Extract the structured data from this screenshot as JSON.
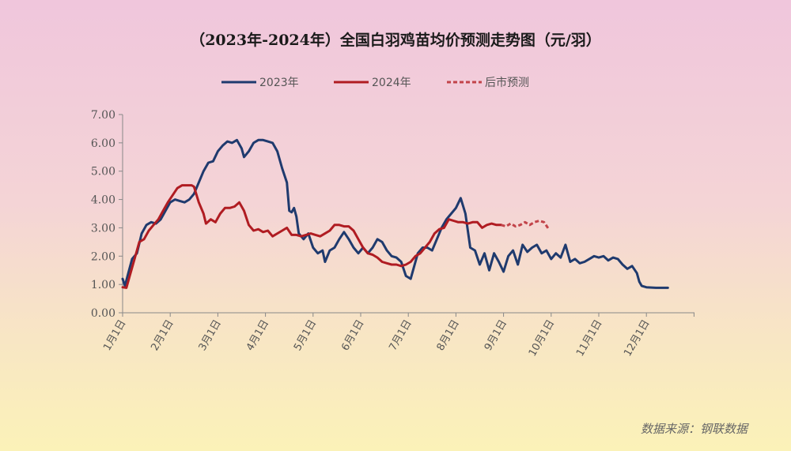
{
  "chart_data": {
    "type": "line",
    "title": "（2023年-2024年）全国白羽鸡苗均价预测走势图（元/羽）",
    "source": "数据来源：钢联数据",
    "ylim": [
      0,
      7
    ],
    "yticks": [
      "0.00",
      "1.00",
      "2.00",
      "3.00",
      "4.00",
      "5.00",
      "6.00",
      "7.00"
    ],
    "xticks": [
      "1月1日",
      "2月1日",
      "3月1日",
      "4月1日",
      "5月1日",
      "6月1日",
      "7月1日",
      "8月1日",
      "9月1日",
      "10月1日",
      "11月1日",
      "12月1日"
    ],
    "legend_position": "top-center",
    "series": [
      {
        "name": "2023年",
        "color": "#1f3a6e",
        "style": "solid",
        "points": [
          [
            0,
            1.2
          ],
          [
            0.05,
            0.95
          ],
          [
            0.12,
            1.4
          ],
          [
            0.2,
            1.9
          ],
          [
            0.3,
            2.1
          ],
          [
            0.4,
            2.8
          ],
          [
            0.5,
            3.1
          ],
          [
            0.6,
            3.2
          ],
          [
            0.7,
            3.15
          ],
          [
            0.8,
            3.3
          ],
          [
            0.9,
            3.6
          ],
          [
            1.0,
            3.9
          ],
          [
            1.1,
            4.0
          ],
          [
            1.2,
            3.95
          ],
          [
            1.3,
            3.9
          ],
          [
            1.4,
            4.0
          ],
          [
            1.5,
            4.2
          ],
          [
            1.6,
            4.6
          ],
          [
            1.7,
            5.0
          ],
          [
            1.8,
            5.3
          ],
          [
            1.9,
            5.35
          ],
          [
            2.0,
            5.7
          ],
          [
            2.1,
            5.9
          ],
          [
            2.2,
            6.05
          ],
          [
            2.3,
            6.0
          ],
          [
            2.4,
            6.1
          ],
          [
            2.5,
            5.8
          ],
          [
            2.55,
            5.5
          ],
          [
            2.65,
            5.7
          ],
          [
            2.75,
            6.0
          ],
          [
            2.85,
            6.1
          ],
          [
            2.95,
            6.1
          ],
          [
            3.05,
            6.05
          ],
          [
            3.15,
            6.0
          ],
          [
            3.25,
            5.7
          ],
          [
            3.35,
            5.1
          ],
          [
            3.45,
            4.6
          ],
          [
            3.5,
            3.6
          ],
          [
            3.55,
            3.55
          ],
          [
            3.6,
            3.7
          ],
          [
            3.65,
            3.4
          ],
          [
            3.7,
            2.8
          ],
          [
            3.8,
            2.6
          ],
          [
            3.9,
            2.8
          ],
          [
            4.0,
            2.3
          ],
          [
            4.1,
            2.1
          ],
          [
            4.2,
            2.2
          ],
          [
            4.25,
            1.8
          ],
          [
            4.35,
            2.2
          ],
          [
            4.45,
            2.3
          ],
          [
            4.55,
            2.6
          ],
          [
            4.65,
            2.85
          ],
          [
            4.75,
            2.6
          ],
          [
            4.85,
            2.3
          ],
          [
            4.95,
            2.1
          ],
          [
            5.05,
            2.3
          ],
          [
            5.15,
            2.1
          ],
          [
            5.25,
            2.3
          ],
          [
            5.35,
            2.6
          ],
          [
            5.45,
            2.5
          ],
          [
            5.55,
            2.2
          ],
          [
            5.65,
            2.0
          ],
          [
            5.75,
            1.95
          ],
          [
            5.85,
            1.8
          ],
          [
            5.95,
            1.3
          ],
          [
            6.05,
            1.2
          ],
          [
            6.1,
            1.5
          ],
          [
            6.2,
            2.1
          ],
          [
            6.3,
            2.3
          ],
          [
            6.4,
            2.3
          ],
          [
            6.5,
            2.2
          ],
          [
            6.6,
            2.6
          ],
          [
            6.7,
            3.0
          ],
          [
            6.8,
            3.3
          ],
          [
            6.9,
            3.5
          ],
          [
            7.0,
            3.7
          ],
          [
            7.1,
            4.05
          ],
          [
            7.2,
            3.5
          ],
          [
            7.3,
            2.3
          ],
          [
            7.4,
            2.2
          ],
          [
            7.5,
            1.7
          ],
          [
            7.6,
            2.1
          ],
          [
            7.7,
            1.5
          ],
          [
            7.8,
            2.1
          ],
          [
            7.9,
            1.8
          ],
          [
            8.0,
            1.45
          ],
          [
            8.1,
            2.0
          ],
          [
            8.2,
            2.2
          ],
          [
            8.3,
            1.7
          ],
          [
            8.4,
            2.4
          ],
          [
            8.5,
            2.15
          ],
          [
            8.6,
            2.3
          ],
          [
            8.7,
            2.4
          ],
          [
            8.8,
            2.1
          ],
          [
            8.9,
            2.2
          ],
          [
            9.0,
            1.9
          ],
          [
            9.1,
            2.1
          ],
          [
            9.2,
            1.95
          ],
          [
            9.3,
            2.4
          ],
          [
            9.4,
            1.8
          ],
          [
            9.5,
            1.9
          ],
          [
            9.6,
            1.75
          ],
          [
            9.7,
            1.8
          ],
          [
            9.8,
            1.9
          ],
          [
            9.9,
            2.0
          ],
          [
            10.0,
            1.95
          ],
          [
            10.1,
            2.0
          ],
          [
            10.2,
            1.85
          ],
          [
            10.3,
            1.95
          ],
          [
            10.4,
            1.9
          ],
          [
            10.5,
            1.7
          ],
          [
            10.6,
            1.55
          ],
          [
            10.7,
            1.65
          ],
          [
            10.8,
            1.4
          ],
          [
            10.85,
            1.1
          ],
          [
            10.9,
            0.95
          ],
          [
            11.0,
            0.9
          ],
          [
            11.2,
            0.88
          ],
          [
            11.45,
            0.88
          ]
        ]
      },
      {
        "name": "2024年",
        "color": "#b01c22",
        "style": "solid",
        "points": [
          [
            0,
            0.9
          ],
          [
            0.08,
            0.88
          ],
          [
            0.15,
            1.3
          ],
          [
            0.25,
            1.9
          ],
          [
            0.35,
            2.5
          ],
          [
            0.45,
            2.6
          ],
          [
            0.55,
            2.9
          ],
          [
            0.65,
            3.1
          ],
          [
            0.75,
            3.3
          ],
          [
            0.85,
            3.6
          ],
          [
            0.95,
            3.9
          ],
          [
            1.05,
            4.15
          ],
          [
            1.15,
            4.4
          ],
          [
            1.25,
            4.5
          ],
          [
            1.35,
            4.5
          ],
          [
            1.45,
            4.5
          ],
          [
            1.5,
            4.45
          ],
          [
            1.6,
            3.9
          ],
          [
            1.7,
            3.5
          ],
          [
            1.75,
            3.15
          ],
          [
            1.85,
            3.3
          ],
          [
            1.95,
            3.2
          ],
          [
            2.05,
            3.5
          ],
          [
            2.15,
            3.7
          ],
          [
            2.25,
            3.7
          ],
          [
            2.35,
            3.75
          ],
          [
            2.45,
            3.9
          ],
          [
            2.55,
            3.6
          ],
          [
            2.65,
            3.1
          ],
          [
            2.75,
            2.9
          ],
          [
            2.85,
            2.95
          ],
          [
            2.95,
            2.85
          ],
          [
            3.05,
            2.9
          ],
          [
            3.15,
            2.7
          ],
          [
            3.25,
            2.8
          ],
          [
            3.35,
            2.9
          ],
          [
            3.45,
            3.0
          ],
          [
            3.55,
            2.75
          ],
          [
            3.65,
            2.75
          ],
          [
            3.75,
            2.7
          ],
          [
            3.85,
            2.75
          ],
          [
            3.95,
            2.8
          ],
          [
            4.05,
            2.75
          ],
          [
            4.15,
            2.7
          ],
          [
            4.25,
            2.8
          ],
          [
            4.35,
            2.9
          ],
          [
            4.45,
            3.1
          ],
          [
            4.55,
            3.1
          ],
          [
            4.65,
            3.05
          ],
          [
            4.75,
            3.05
          ],
          [
            4.85,
            2.9
          ],
          [
            4.95,
            2.6
          ],
          [
            5.05,
            2.3
          ],
          [
            5.15,
            2.1
          ],
          [
            5.25,
            2.05
          ],
          [
            5.35,
            1.95
          ],
          [
            5.45,
            1.8
          ],
          [
            5.55,
            1.75
          ],
          [
            5.65,
            1.7
          ],
          [
            5.75,
            1.7
          ],
          [
            5.85,
            1.65
          ],
          [
            5.95,
            1.7
          ],
          [
            6.05,
            1.8
          ],
          [
            6.15,
            2.0
          ],
          [
            6.25,
            2.1
          ],
          [
            6.35,
            2.3
          ],
          [
            6.45,
            2.5
          ],
          [
            6.55,
            2.8
          ],
          [
            6.65,
            2.95
          ],
          [
            6.75,
            3.0
          ],
          [
            6.85,
            3.3
          ],
          [
            6.95,
            3.25
          ],
          [
            7.05,
            3.2
          ],
          [
            7.15,
            3.2
          ],
          [
            7.25,
            3.15
          ],
          [
            7.35,
            3.2
          ],
          [
            7.45,
            3.2
          ],
          [
            7.55,
            3.0
          ],
          [
            7.65,
            3.1
          ],
          [
            7.75,
            3.15
          ],
          [
            7.85,
            3.1
          ],
          [
            7.95,
            3.1
          ]
        ]
      },
      {
        "name": "后市预测",
        "color": "#c2444a",
        "style": "dashed",
        "points": [
          [
            7.95,
            3.1
          ],
          [
            8.05,
            3.05
          ],
          [
            8.15,
            3.15
          ],
          [
            8.25,
            3.05
          ],
          [
            8.35,
            3.1
          ],
          [
            8.45,
            3.2
          ],
          [
            8.55,
            3.1
          ],
          [
            8.65,
            3.2
          ],
          [
            8.75,
            3.25
          ],
          [
            8.85,
            3.2
          ],
          [
            8.95,
            2.95
          ]
        ]
      }
    ]
  }
}
